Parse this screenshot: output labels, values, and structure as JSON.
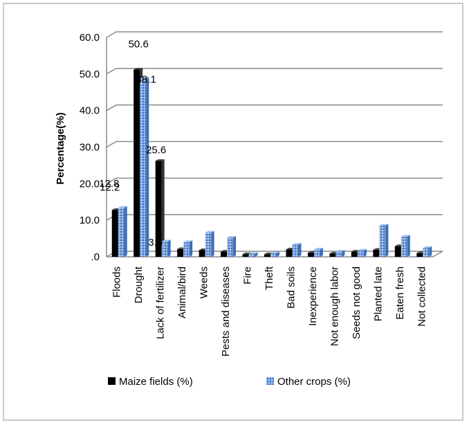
{
  "chart_data": {
    "type": "bar",
    "title": "",
    "xlabel": "",
    "ylabel": "Percentage(%)",
    "ylim": [
      0,
      60
    ],
    "yticks": [
      ".0",
      "10.0",
      "20.0",
      "30.0",
      "40.0",
      "50.0",
      "60.0"
    ],
    "grid": true,
    "legend_position": "bottom",
    "categories": [
      "Floods",
      "Drought",
      "Lack of fertilizer",
      "Animal/bird",
      "Weeds",
      "Pests and diseases",
      "Fire",
      "Theft",
      "Bad soils",
      "Inexperience",
      "Not enough labor",
      "Seeds not good",
      "Planted late",
      "Eaten fresh",
      "Not collected"
    ],
    "series": [
      {
        "name": "Maize fields (%)",
        "color": "#000000",
        "values": [
          12.2,
          50.6,
          25.6,
          1.5,
          1.2,
          0.8,
          0.1,
          0.1,
          1.4,
          0.5,
          0.3,
          0.8,
          1.3,
          2.3,
          0.4
        ],
        "labels": [
          "12.2",
          "50.6",
          "25.6",
          "",
          "",
          "",
          "",
          "",
          "",
          "",
          "",
          "",
          "",
          "",
          ""
        ]
      },
      {
        "name": "Other crops (%)",
        "color": "#5b8ed6",
        "values": [
          12.8,
          48.1,
          3.6,
          3.4,
          6.0,
          4.6,
          0.2,
          0.3,
          2.7,
          1.4,
          0.8,
          1.1,
          7.9,
          4.9,
          1.8
        ],
        "labels": [
          "12.8",
          "48.1",
          "3.6",
          "",
          "",
          "",
          "",
          "",
          "",
          "",
          "",
          "",
          "",
          "",
          ""
        ]
      }
    ]
  }
}
